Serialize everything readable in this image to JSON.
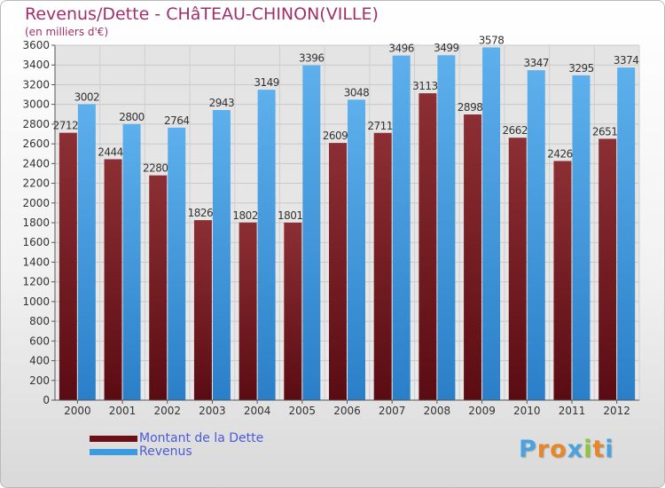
{
  "header": {
    "title": "Revenus/Dette - CHâTEAU-CHINON(VILLE)",
    "subtitle": "(en milliers d'€)"
  },
  "legend": {
    "debt_label": "Montant de la Dette",
    "revenue_label": "Revenus"
  },
  "logo": {
    "text": "Proxiti"
  },
  "colors": {
    "debt": "#7a1f24",
    "revenue": "#3b9be0",
    "title": "#a0306a",
    "legend_text": "#4b5bd6"
  },
  "chart_data": {
    "type": "bar",
    "categories": [
      "2000",
      "2001",
      "2002",
      "2003",
      "2004",
      "2005",
      "2006",
      "2007",
      "2008",
      "2009",
      "2010",
      "2011",
      "2012"
    ],
    "series": [
      {
        "name": "Montant de la Dette",
        "values": [
          2712,
          2444,
          2280,
          1826,
          1802,
          1801,
          2609,
          2711,
          3113,
          2898,
          2662,
          2426,
          2651
        ]
      },
      {
        "name": "Revenus",
        "values": [
          3002,
          2800,
          2764,
          2943,
          3149,
          3396,
          3048,
          3496,
          3499,
          3578,
          3347,
          3295,
          3374
        ]
      }
    ],
    "ylim": [
      0,
      3600
    ],
    "yticks": [
      0,
      200,
      400,
      600,
      800,
      1000,
      1200,
      1400,
      1600,
      1800,
      2000,
      2200,
      2400,
      2600,
      2800,
      3000,
      3200,
      3400,
      3600
    ],
    "grid": true,
    "legend_position": "bottom-left"
  }
}
